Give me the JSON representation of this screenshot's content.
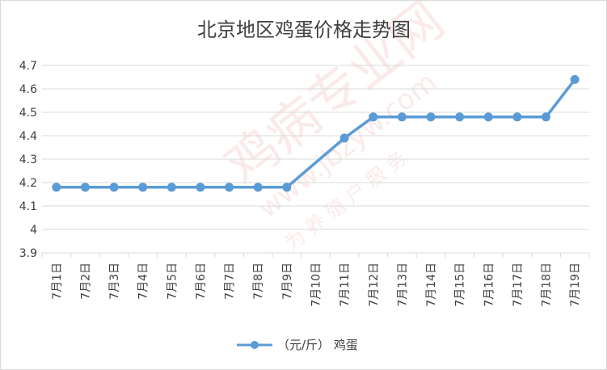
{
  "chart_data": {
    "type": "line",
    "title": "北京地区鸡蛋价格走势图",
    "categories": [
      "7月1日",
      "7月2日",
      "7月3日",
      "7月4日",
      "7月5日",
      "7月6日",
      "7月7日",
      "7月8日",
      "7月9日",
      "7月10日",
      "7月11日",
      "7月12日",
      "7月13日",
      "7月14日",
      "7月15日",
      "7月16日",
      "7月17日",
      "7月18日",
      "7月19日"
    ],
    "series": [
      {
        "name": "（元/斤） 鸡蛋",
        "color": "#5b9bd5",
        "values": [
          4.18,
          4.18,
          4.18,
          4.18,
          4.18,
          4.18,
          4.18,
          4.18,
          4.18,
          null,
          4.39,
          4.48,
          4.48,
          4.48,
          4.48,
          4.48,
          4.48,
          4.48,
          4.64
        ]
      }
    ],
    "y_ticks": [
      "3.9",
      "4",
      "4.1",
      "4.2",
      "4.3",
      "4.4",
      "4.5",
      "4.6",
      "4.7"
    ],
    "ylim": [
      3.9,
      4.7
    ],
    "grid": true,
    "legend": "bottom"
  },
  "watermark": {
    "brand": "鸡病专业网",
    "url": "www.jbzyw.com",
    "slogan": "为 养 殖 户 服 务"
  }
}
